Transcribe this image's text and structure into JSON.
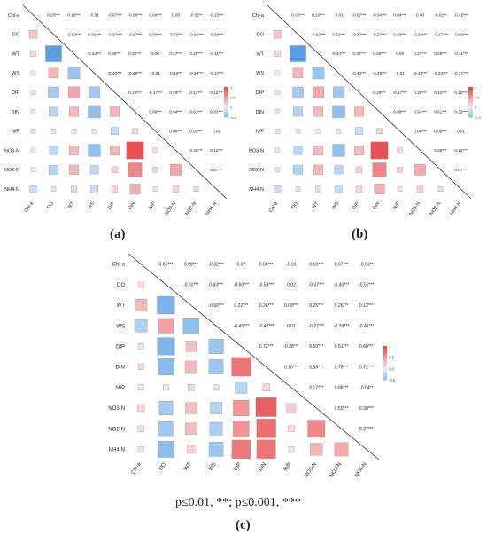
{
  "variables": [
    "Chl-a",
    "DO",
    "WT",
    "WS",
    "DIP",
    "DIN",
    "N/P",
    "NO3-N",
    "NO2-N",
    "NH4-N"
  ],
  "colors": {
    "positive": "#e8474a",
    "negative": "#3d8fe0",
    "neutral": "#ffffff",
    "grid": "#d8d8d8"
  },
  "footnote": "p≤0.01, **; p≤0.001, ***",
  "panels": [
    {
      "label": "(a)",
      "colorbar_ticks": [
        "1",
        "0.5",
        "0",
        "-0.5"
      ]
    },
    {
      "label": "(b)",
      "colorbar_ticks": [
        "1",
        "0.5",
        "0",
        "-0.5"
      ]
    },
    {
      "label": "(c)",
      "colorbar_ticks": [
        "1",
        "0.5",
        "0.0",
        "-0.5"
      ]
    }
  ],
  "chart_data": [
    {
      "type": "heatmap",
      "title": "",
      "variables": [
        "Chl-a",
        "DO",
        "WT",
        "WS",
        "DIP",
        "DIN",
        "N/P",
        "NO3-N",
        "NO2-N",
        "NH4-N"
      ],
      "upper_labels": [
        [
          "0.20***",
          "0.10***",
          "-0.01",
          "-0.07***",
          "-0.04***",
          "0.04***",
          "0.00",
          "-0.02**",
          "-0.15***"
        ],
        [
          "-0.82***",
          "0.31***",
          "-0.37***",
          "-0.27***",
          "0.03***",
          "-0.23***",
          "-0.27***",
          "-0.06***"
        ],
        [
          "-0.44***",
          "0.39***",
          "0.28***",
          "0.00",
          "0.27***",
          "0.29***",
          "-0.11***"
        ],
        [
          "-0.40***",
          "-0.49***",
          "-0.01",
          "-0.48***",
          "-0.23***",
          "-0.17***"
        ],
        [
          "0.29***",
          "-0.17***",
          "0.28***",
          "0.12***",
          "0.12***"
        ],
        [
          "0.09***",
          "0.94***",
          "0.61***",
          "0.33***"
        ],
        [
          "0.08***",
          "0.09***",
          "0.01"
        ],
        [
          "0.39***",
          "0.12***"
        ],
        [
          "0.07***"
        ]
      ],
      "colorbar_range": [
        -0.5,
        1
      ]
    },
    {
      "type": "heatmap",
      "title": "",
      "variables": [
        "Chl-a",
        "DO",
        "WT",
        "WS",
        "DIP",
        "DIN",
        "N/P",
        "NO3-N",
        "NO2-N",
        "NH4-N"
      ],
      "upper_labels": [
        [
          "0.20***",
          "0.10***",
          "-0.01",
          "-0.07***",
          "-0.04***",
          "0.04***",
          "0.00",
          "-0.02**",
          "-0.15***"
        ],
        [
          "-0.82***",
          "0.31***",
          "-0.37***",
          "-0.27***",
          "0.03***",
          "-0.23***",
          "-0.27***",
          "-0.06***"
        ],
        [
          "-0.44***",
          "0.39***",
          "0.28***",
          "0.00",
          "0.27***",
          "0.29***",
          "-0.11***"
        ],
        [
          "-0.40***",
          "-0.49***",
          "-0.01",
          "-0.48***",
          "-0.23***",
          "-0.17***"
        ],
        [
          "0.29***",
          "-0.17***",
          "0.28***",
          "0.12***",
          "0.12***"
        ],
        [
          "0.09***",
          "0.94***",
          "0.61***",
          "0.33***"
        ],
        [
          "0.08***",
          "0.09***",
          "0.01"
        ],
        [
          "0.38***",
          "0.12***"
        ],
        [
          "0.07***"
        ]
      ],
      "colorbar_range": [
        -0.5,
        1
      ]
    },
    {
      "type": "heatmap",
      "title": "",
      "variables": [
        "Chl-a",
        "DO",
        "WT",
        "WS",
        "DIP",
        "DIN",
        "N/P",
        "NO3-N",
        "NO2-N",
        "NH4-N"
      ],
      "upper_labels": [
        [
          "0.05***",
          "0.28***",
          "-0.32***",
          "0.02",
          "0.06***",
          "-0.01",
          "0.10***",
          "0.07***",
          "-0.03**"
        ],
        [
          "-0.62***",
          "0.43***",
          "-0.60***",
          "-0.54***",
          "0.02",
          "-0.37***",
          "-0.40***",
          "-0.52***"
        ],
        [
          "-0.50***",
          "0.22***",
          "0.28***",
          "0.08***",
          "0.25***",
          "0.26***",
          "0.13***"
        ],
        [
          "-0.43***",
          "-0.42***",
          "0.01",
          "-0.27***",
          "-0.33***",
          "-0.41***"
        ],
        [
          "0.72***",
          "-0.28***",
          "0.50***",
          "0.51***",
          "0.68***"
        ],
        [
          "0.10***",
          "0.85***",
          "0.75***",
          "0.72***"
        ],
        [
          "0.17***",
          "0.08***",
          "-0.04**"
        ],
        [
          "0.59***",
          "0.30***"
        ],
        [
          "0.37***"
        ]
      ],
      "colorbar_range": [
        -0.5,
        1
      ]
    }
  ]
}
